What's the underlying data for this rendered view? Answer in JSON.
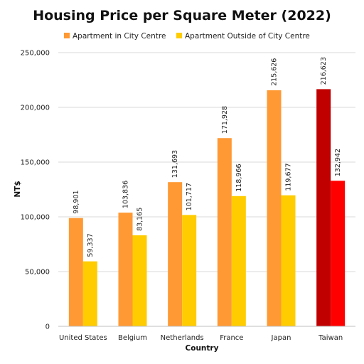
{
  "chart_data": {
    "type": "bar",
    "title": "Housing Price per Square Meter (2022)",
    "xlabel": "Country",
    "ylabel": "NT$",
    "categories": [
      "United States",
      "Belgium",
      "Netherlands",
      "France",
      "Japan",
      "Taiwan"
    ],
    "series": [
      {
        "name": "Apartment in City Centre",
        "values": [
          98901,
          103836,
          131693,
          171928,
          215626,
          216623
        ],
        "labels": [
          "98,901",
          "103,836",
          "131,693",
          "171,928",
          "215,626",
          "216,623"
        ],
        "color": "#FF9933"
      },
      {
        "name": "Apartment Outside of City Centre",
        "values": [
          59337,
          83165,
          101717,
          118966,
          119677,
          132942
        ],
        "labels": [
          "59,337",
          "83,165",
          "101,717",
          "118,966",
          "119,677",
          "132,942"
        ],
        "color": "#FFCC00"
      }
    ],
    "highlight": {
      "category": "Taiwan",
      "colors": [
        "#C00000",
        "#FF0000"
      ]
    },
    "ylim": [
      0,
      250000
    ],
    "yticks": [
      0,
      50000,
      100000,
      150000,
      200000,
      250000
    ],
    "ytick_labels": [
      "0",
      "50,000",
      "100,000",
      "150,000",
      "200,000",
      "250,000"
    ],
    "grid": true,
    "legend_position": "top"
  }
}
